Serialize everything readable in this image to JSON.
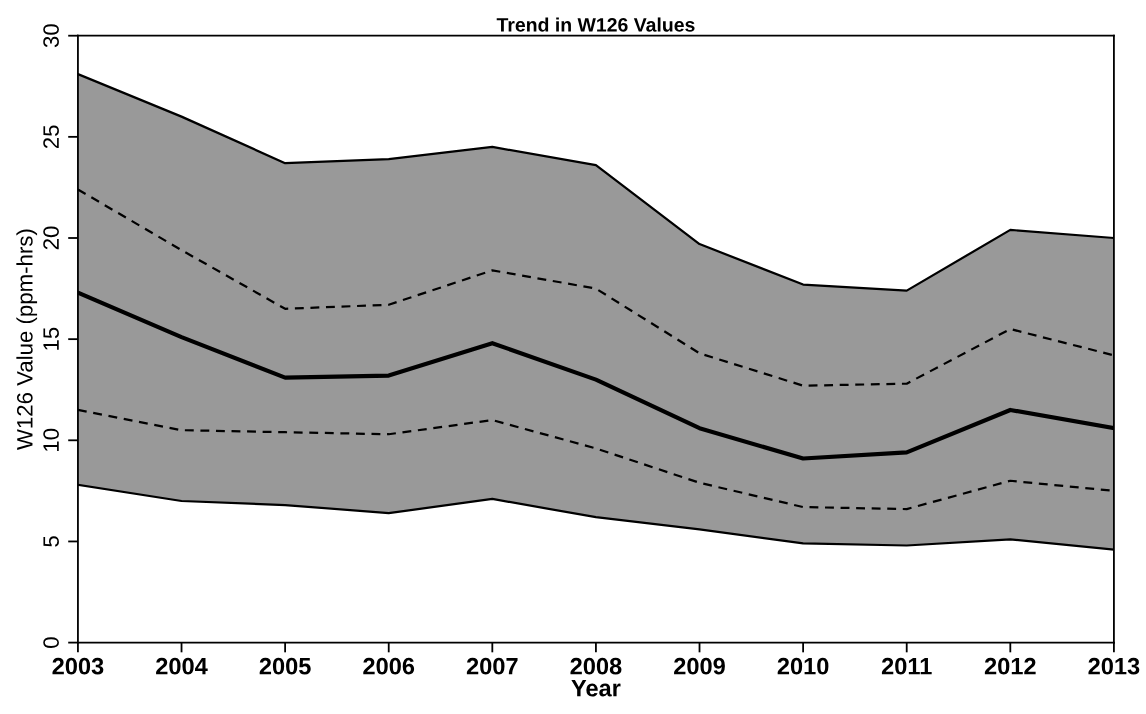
{
  "chart_data": {
    "type": "line",
    "title": "Trend in W126 Values",
    "xlabel": "Year",
    "ylabel": "W126 Value (ppm-hrs)",
    "x": [
      2003,
      2004,
      2005,
      2006,
      2007,
      2008,
      2009,
      2010,
      2011,
      2012,
      2013
    ],
    "series": [
      {
        "color": "#000000",
        "line_style": "solid",
        "values": [
          28.1,
          26.0,
          23.7,
          23.9,
          24.5,
          23.6,
          19.7,
          17.7,
          17.4,
          20.4,
          20.0
        ]
      },
      {
        "color": "#000000",
        "line_style": "solid",
        "values": [
          7.8,
          7.0,
          6.8,
          6.4,
          7.1,
          6.2,
          5.6,
          4.9,
          4.8,
          5.1,
          4.6
        ]
      },
      {
        "color": "#000000",
        "line_style": "solid",
        "values": [
          17.3,
          15.1,
          13.1,
          13.2,
          14.8,
          13.0,
          10.6,
          9.1,
          9.4,
          11.5,
          10.6
        ],
        "lower": [
          7.8,
          7.0,
          6.8,
          6.4,
          7.1,
          6.2,
          5.6,
          4.9,
          4.8,
          5.1,
          4.6
        ],
        "upper": [
          28.1,
          26.0,
          23.7,
          23.9,
          24.5,
          23.6,
          19.7,
          17.7,
          17.4,
          20.4,
          20.0
        ]
      },
      {
        "color": "#000000",
        "line_style": "dashed",
        "values": [
          22.4,
          19.4,
          16.5,
          16.7,
          18.4,
          17.5,
          14.3,
          12.7,
          12.8,
          15.5,
          14.2
        ]
      },
      {
        "color": "#000000",
        "line_style": "dashed",
        "values": [
          11.5,
          10.5,
          10.4,
          10.3,
          11.0,
          9.6,
          7.9,
          6.7,
          6.6,
          8.0,
          7.5
        ]
      }
    ],
    "xlim": [
      2003,
      2013
    ],
    "xticks": [
      2003,
      2004,
      2005,
      2006,
      2007,
      2008,
      2009,
      2010,
      2011,
      2012,
      2013
    ],
    "ylim": [
      0,
      30
    ],
    "yticks": [
      0,
      5,
      10,
      15,
      20,
      25,
      30
    ],
    "grid": false,
    "legend": false,
    "marker": "none"
  }
}
